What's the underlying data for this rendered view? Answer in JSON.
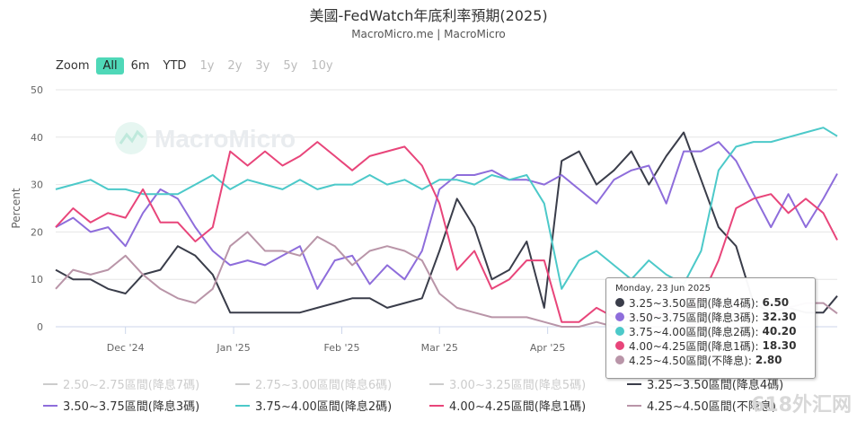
{
  "title": "美國-FedWatch年底利率預期(2025)",
  "subtitle": "MacroMicro.me | MacroMicro",
  "range_selector": {
    "label": "Zoom",
    "buttons": [
      "All",
      "6m",
      "YTD",
      "1y",
      "2y",
      "3y",
      "5y",
      "10y"
    ],
    "selected": "All",
    "disabled": [
      "1y",
      "2y",
      "3y",
      "5y",
      "10y"
    ]
  },
  "watermark_logo": "MacroMicro",
  "corner_watermark": "618外汇网",
  "tooltip": {
    "date": "Monday, 23 Jun 2025",
    "rows": [
      {
        "label": "3.25~3.50區間(降息4碼):",
        "value": "6.50",
        "color": "#3a3d4a"
      },
      {
        "label": "3.50~3.75區間(降息3碼):",
        "value": "32.30",
        "color": "#8e6ddb"
      },
      {
        "label": "3.75~4.00區間(降息2碼):",
        "value": "40.20",
        "color": "#4cc9c9"
      },
      {
        "label": "4.00~4.25區間(降息1碼):",
        "value": "18.30",
        "color": "#e8457a"
      },
      {
        "label": "4.25~4.50區間(不降息):",
        "value": "2.80",
        "color": "#b995a8"
      }
    ]
  },
  "chart_data": {
    "type": "line",
    "ylabel": "Percent",
    "ylim": [
      0,
      50
    ],
    "yticks": [
      0,
      10,
      20,
      30,
      40,
      50
    ],
    "xlim": [
      "2024-11-11",
      "2025-06-23"
    ],
    "xticks": [
      {
        "label": "Dec '24",
        "date": "2024-12-01"
      },
      {
        "label": "Jan '25",
        "date": "2025-01-01"
      },
      {
        "label": "Feb '25",
        "date": "2025-02-01"
      },
      {
        "label": "Mar '25",
        "date": "2025-03-01"
      },
      {
        "label": "Apr '25",
        "date": "2025-04-01"
      }
    ],
    "legend": [
      {
        "label": "2.50~2.75區間(降息7碼)",
        "color": "#cccccc",
        "visible": false
      },
      {
        "label": "2.75~3.00區間(降息6碼)",
        "color": "#cccccc",
        "visible": false
      },
      {
        "label": "3.00~3.25區間(降息5碼)",
        "color": "#cccccc",
        "visible": false
      },
      {
        "label": "3.25~3.50區間(降息4碼)",
        "color": "#3a3d4a",
        "visible": true
      },
      {
        "label": "3.50~3.75區間(降息3碼)",
        "color": "#8e6ddb",
        "visible": true
      },
      {
        "label": "3.75~4.00區間(降息2碼)",
        "color": "#4cc9c9",
        "visible": true
      },
      {
        "label": "4.00~4.25區間(降息1碼)",
        "color": "#e8457a",
        "visible": true
      },
      {
        "label": "4.25~4.50區間(不降息)",
        "color": "#b995a8",
        "visible": true
      }
    ],
    "series": [
      {
        "name": "3.25~3.50區間(降息4碼)",
        "color": "#3a3d4a",
        "points": [
          [
            "2024-11-11",
            12
          ],
          [
            "2024-11-16",
            10
          ],
          [
            "2024-11-21",
            10
          ],
          [
            "2024-11-26",
            8
          ],
          [
            "2024-12-01",
            7
          ],
          [
            "2024-12-06",
            11
          ],
          [
            "2024-12-11",
            12
          ],
          [
            "2024-12-16",
            17
          ],
          [
            "2024-12-21",
            15
          ],
          [
            "2024-12-26",
            11
          ],
          [
            "2024-12-31",
            3
          ],
          [
            "2025-01-05",
            3
          ],
          [
            "2025-01-10",
            3
          ],
          [
            "2025-01-15",
            3
          ],
          [
            "2025-01-20",
            3
          ],
          [
            "2025-01-25",
            4
          ],
          [
            "2025-01-30",
            5
          ],
          [
            "2025-02-04",
            6
          ],
          [
            "2025-02-09",
            6
          ],
          [
            "2025-02-14",
            4
          ],
          [
            "2025-02-19",
            5
          ],
          [
            "2025-02-24",
            6
          ],
          [
            "2025-03-01",
            16
          ],
          [
            "2025-03-06",
            27
          ],
          [
            "2025-03-11",
            21
          ],
          [
            "2025-03-16",
            10
          ],
          [
            "2025-03-21",
            12
          ],
          [
            "2025-03-26",
            18
          ],
          [
            "2025-03-31",
            4
          ],
          [
            "2025-04-05",
            35
          ],
          [
            "2025-04-10",
            37
          ],
          [
            "2025-04-15",
            30
          ],
          [
            "2025-04-20",
            33
          ],
          [
            "2025-04-25",
            37
          ],
          [
            "2025-04-30",
            30
          ],
          [
            "2025-05-05",
            36
          ],
          [
            "2025-05-10",
            41
          ],
          [
            "2025-05-15",
            31
          ],
          [
            "2025-05-20",
            21
          ],
          [
            "2025-05-25",
            17
          ],
          [
            "2025-05-30",
            5
          ],
          [
            "2025-06-04",
            3
          ],
          [
            "2025-06-09",
            4
          ],
          [
            "2025-06-14",
            3
          ],
          [
            "2025-06-19",
            3
          ],
          [
            "2025-06-23",
            6.5
          ]
        ]
      },
      {
        "name": "3.50~3.75區間(降息3碼)",
        "color": "#8e6ddb",
        "points": [
          [
            "2024-11-11",
            21
          ],
          [
            "2024-11-16",
            23
          ],
          [
            "2024-11-21",
            20
          ],
          [
            "2024-11-26",
            21
          ],
          [
            "2024-12-01",
            17
          ],
          [
            "2024-12-06",
            24
          ],
          [
            "2024-12-11",
            29
          ],
          [
            "2024-12-16",
            27
          ],
          [
            "2024-12-21",
            21
          ],
          [
            "2024-12-26",
            16
          ],
          [
            "2024-12-31",
            13
          ],
          [
            "2025-01-05",
            14
          ],
          [
            "2025-01-10",
            13
          ],
          [
            "2025-01-15",
            15
          ],
          [
            "2025-01-20",
            17
          ],
          [
            "2025-01-25",
            8
          ],
          [
            "2025-01-30",
            14
          ],
          [
            "2025-02-04",
            15
          ],
          [
            "2025-02-09",
            9
          ],
          [
            "2025-02-14",
            13
          ],
          [
            "2025-02-19",
            10
          ],
          [
            "2025-02-24",
            16
          ],
          [
            "2025-03-01",
            29
          ],
          [
            "2025-03-06",
            32
          ],
          [
            "2025-03-11",
            32
          ],
          [
            "2025-03-16",
            33
          ],
          [
            "2025-03-21",
            31
          ],
          [
            "2025-03-26",
            31
          ],
          [
            "2025-03-31",
            30
          ],
          [
            "2025-04-05",
            32
          ],
          [
            "2025-04-10",
            29
          ],
          [
            "2025-04-15",
            26
          ],
          [
            "2025-04-20",
            31
          ],
          [
            "2025-04-25",
            33
          ],
          [
            "2025-04-30",
            34
          ],
          [
            "2025-05-05",
            26
          ],
          [
            "2025-05-10",
            37
          ],
          [
            "2025-05-15",
            37
          ],
          [
            "2025-05-20",
            39
          ],
          [
            "2025-05-25",
            35
          ],
          [
            "2025-05-30",
            28
          ],
          [
            "2025-06-04",
            21
          ],
          [
            "2025-06-09",
            28
          ],
          [
            "2025-06-14",
            21
          ],
          [
            "2025-06-19",
            27
          ],
          [
            "2025-06-23",
            32.3
          ]
        ]
      },
      {
        "name": "3.75~4.00區間(降息2碼)",
        "color": "#4cc9c9",
        "points": [
          [
            "2024-11-11",
            29
          ],
          [
            "2024-11-16",
            30
          ],
          [
            "2024-11-21",
            31
          ],
          [
            "2024-11-26",
            29
          ],
          [
            "2024-12-01",
            29
          ],
          [
            "2024-12-06",
            28
          ],
          [
            "2024-12-11",
            28
          ],
          [
            "2024-12-16",
            28
          ],
          [
            "2024-12-21",
            30
          ],
          [
            "2024-12-26",
            32
          ],
          [
            "2024-12-31",
            29
          ],
          [
            "2025-01-05",
            31
          ],
          [
            "2025-01-10",
            30
          ],
          [
            "2025-01-15",
            29
          ],
          [
            "2025-01-20",
            31
          ],
          [
            "2025-01-25",
            29
          ],
          [
            "2025-01-30",
            30
          ],
          [
            "2025-02-04",
            30
          ],
          [
            "2025-02-09",
            32
          ],
          [
            "2025-02-14",
            30
          ],
          [
            "2025-02-19",
            31
          ],
          [
            "2025-02-24",
            29
          ],
          [
            "2025-03-01",
            31
          ],
          [
            "2025-03-06",
            31
          ],
          [
            "2025-03-11",
            30
          ],
          [
            "2025-03-16",
            32
          ],
          [
            "2025-03-21",
            31
          ],
          [
            "2025-03-26",
            32
          ],
          [
            "2025-03-31",
            26
          ],
          [
            "2025-04-05",
            8
          ],
          [
            "2025-04-10",
            14
          ],
          [
            "2025-04-15",
            16
          ],
          [
            "2025-04-20",
            13
          ],
          [
            "2025-04-25",
            10
          ],
          [
            "2025-04-30",
            14
          ],
          [
            "2025-05-05",
            11
          ],
          [
            "2025-05-10",
            9
          ],
          [
            "2025-05-15",
            16
          ],
          [
            "2025-05-20",
            33
          ],
          [
            "2025-05-25",
            38
          ],
          [
            "2025-05-30",
            39
          ],
          [
            "2025-06-04",
            39
          ],
          [
            "2025-06-09",
            40
          ],
          [
            "2025-06-14",
            41
          ],
          [
            "2025-06-19",
            42
          ],
          [
            "2025-06-23",
            40.2
          ]
        ]
      },
      {
        "name": "4.00~4.25區間(降息1碼)",
        "color": "#e8457a",
        "points": [
          [
            "2024-11-11",
            21
          ],
          [
            "2024-11-16",
            25
          ],
          [
            "2024-11-21",
            22
          ],
          [
            "2024-11-26",
            24
          ],
          [
            "2024-12-01",
            23
          ],
          [
            "2024-12-06",
            29
          ],
          [
            "2024-12-11",
            22
          ],
          [
            "2024-12-16",
            22
          ],
          [
            "2024-12-21",
            18
          ],
          [
            "2024-12-26",
            21
          ],
          [
            "2024-12-31",
            37
          ],
          [
            "2025-01-05",
            34
          ],
          [
            "2025-01-10",
            37
          ],
          [
            "2025-01-15",
            34
          ],
          [
            "2025-01-20",
            36
          ],
          [
            "2025-01-25",
            39
          ],
          [
            "2025-01-30",
            36
          ],
          [
            "2025-02-04",
            33
          ],
          [
            "2025-02-09",
            36
          ],
          [
            "2025-02-14",
            37
          ],
          [
            "2025-02-19",
            38
          ],
          [
            "2025-02-24",
            34
          ],
          [
            "2025-03-01",
            26
          ],
          [
            "2025-03-06",
            12
          ],
          [
            "2025-03-11",
            16
          ],
          [
            "2025-03-16",
            8
          ],
          [
            "2025-03-21",
            10
          ],
          [
            "2025-03-26",
            14
          ],
          [
            "2025-03-31",
            14
          ],
          [
            "2025-04-05",
            1
          ],
          [
            "2025-04-10",
            1
          ],
          [
            "2025-04-15",
            4
          ],
          [
            "2025-04-20",
            2
          ],
          [
            "2025-04-25",
            2
          ],
          [
            "2025-04-30",
            2
          ],
          [
            "2025-05-05",
            3
          ],
          [
            "2025-05-10",
            3
          ],
          [
            "2025-05-15",
            6
          ],
          [
            "2025-05-20",
            14
          ],
          [
            "2025-05-25",
            25
          ],
          [
            "2025-05-30",
            27
          ],
          [
            "2025-06-04",
            28
          ],
          [
            "2025-06-09",
            24
          ],
          [
            "2025-06-14",
            27
          ],
          [
            "2025-06-19",
            24
          ],
          [
            "2025-06-23",
            18.3
          ]
        ]
      },
      {
        "name": "4.25~4.50區間(不降息)",
        "color": "#b995a8",
        "points": [
          [
            "2024-11-11",
            8
          ],
          [
            "2024-11-16",
            12
          ],
          [
            "2024-11-21",
            11
          ],
          [
            "2024-11-26",
            12
          ],
          [
            "2024-12-01",
            15
          ],
          [
            "2024-12-06",
            11
          ],
          [
            "2024-12-11",
            8
          ],
          [
            "2024-12-16",
            6
          ],
          [
            "2024-12-21",
            5
          ],
          [
            "2024-12-26",
            8
          ],
          [
            "2024-12-31",
            17
          ],
          [
            "2025-01-05",
            20
          ],
          [
            "2025-01-10",
            16
          ],
          [
            "2025-01-15",
            16
          ],
          [
            "2025-01-20",
            15
          ],
          [
            "2025-01-25",
            19
          ],
          [
            "2025-01-30",
            17
          ],
          [
            "2025-02-04",
            13
          ],
          [
            "2025-02-09",
            16
          ],
          [
            "2025-02-14",
            17
          ],
          [
            "2025-02-19",
            16
          ],
          [
            "2025-02-24",
            14
          ],
          [
            "2025-03-01",
            7
          ],
          [
            "2025-03-06",
            4
          ],
          [
            "2025-03-11",
            3
          ],
          [
            "2025-03-16",
            2
          ],
          [
            "2025-03-21",
            2
          ],
          [
            "2025-03-26",
            2
          ],
          [
            "2025-03-31",
            1
          ],
          [
            "2025-04-05",
            0
          ],
          [
            "2025-04-10",
            0
          ],
          [
            "2025-04-15",
            1
          ],
          [
            "2025-04-20",
            0
          ],
          [
            "2025-04-25",
            0
          ],
          [
            "2025-04-30",
            0
          ],
          [
            "2025-05-05",
            0
          ],
          [
            "2025-05-10",
            0
          ],
          [
            "2025-05-15",
            1
          ],
          [
            "2025-05-20",
            2
          ],
          [
            "2025-05-25",
            4
          ],
          [
            "2025-05-30",
            4
          ],
          [
            "2025-06-04",
            5
          ],
          [
            "2025-06-09",
            4
          ],
          [
            "2025-06-14",
            5
          ],
          [
            "2025-06-19",
            5
          ],
          [
            "2025-06-23",
            2.8
          ]
        ]
      }
    ]
  }
}
